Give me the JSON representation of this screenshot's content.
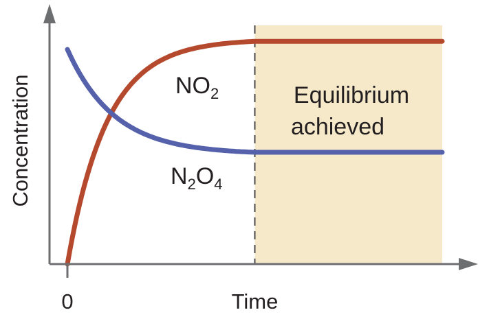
{
  "chart_data": {
    "type": "line",
    "title": "",
    "xlabel": "Time",
    "ylabel": "Concentration",
    "x_tick_labels": [
      {
        "value": 0,
        "label": "0"
      }
    ],
    "xlim": [
      0,
      10
    ],
    "ylim": [
      0,
      10
    ],
    "equilibrium_time": 5,
    "region_label_lines": [
      "Equilibrium",
      "achieved"
    ],
    "series": [
      {
        "label_main": "NO",
        "label_sub": "2",
        "color": "#b5492e",
        "start": 0,
        "plateau": 9.0,
        "rate": 0.95
      },
      {
        "label_main1": "N",
        "label_sub1": "2",
        "label_main2": "O",
        "label_sub2": "4",
        "color": "#5561ab",
        "start": 8.6,
        "plateau": 4.4,
        "rate": 0.8
      }
    ],
    "colors": {
      "region_fill": "#f5e9c9",
      "axis": "#6d6e70",
      "divider": "#4a4a4a"
    }
  }
}
